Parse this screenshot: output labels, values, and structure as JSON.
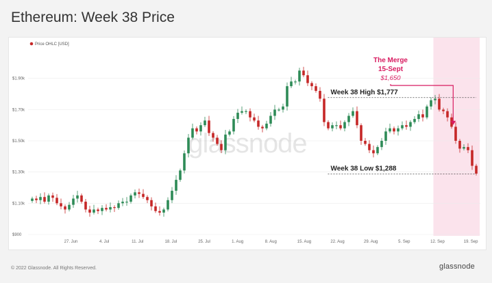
{
  "title": "Ethereum: Week 38 Price",
  "footer": "© 2022 Glassnode. All Rights Reserved.",
  "brand": "glassnode",
  "watermark": "glassnode",
  "colors": {
    "up": "#2e8b57",
    "down": "#c62828",
    "highlight_bg": "#fbe3ec",
    "accent": "#d81b60",
    "grid": "#ececec"
  },
  "chart_data": {
    "type": "candlestick",
    "legend": "Price OHLC [USD]",
    "ylim": [
      900,
      2100
    ],
    "y_ticks": [
      900,
      1100,
      1300,
      1500,
      1700,
      1900
    ],
    "y_tick_labels": [
      "$900",
      "$1.10k",
      "$1.30k",
      "$1.50k",
      "$1.70k",
      "$1.90k"
    ],
    "x_start": "2022-06-18",
    "x_end": "2022-09-21",
    "x_ticks": [
      "2022-06-27",
      "2022-07-04",
      "2022-07-11",
      "2022-07-18",
      "2022-07-25",
      "2022-08-01",
      "2022-08-08",
      "2022-08-15",
      "2022-08-22",
      "2022-08-29",
      "2022-09-05",
      "2022-09-12",
      "2022-09-19"
    ],
    "x_tick_labels": [
      "27. Jun",
      "4. Jul",
      "11. Jul",
      "18. Jul",
      "25. Jul",
      "1. Aug",
      "8. Aug",
      "15. Aug",
      "22. Aug",
      "29. Aug",
      "5. Sep",
      "12. Sep",
      "19. Sep"
    ],
    "highlight": {
      "from": "2022-09-12",
      "to": "2022-09-20"
    },
    "annotations": {
      "high": {
        "label": "Week 38 High $1,777",
        "value": 1777,
        "from": "2022-09-12"
      },
      "low": {
        "label": "Week 38 Low $1,288",
        "value": 1288,
        "from": "2022-09-12"
      },
      "merge": {
        "line1": "The Merge",
        "line2": "15-Sept",
        "price": "$1,650",
        "date": "2022-09-15",
        "value": 1650
      }
    },
    "series": [
      {
        "name": "Price OHLC [USD]",
        "x": [],
        "closes": [
          1130,
          1120,
          1140,
          1110,
          1150,
          1135,
          1100,
          1080,
          1060,
          1090,
          1130,
          1150,
          1110,
          1060,
          1040,
          1060,
          1050,
          1070,
          1060,
          1075,
          1070,
          1100,
          1110,
          1110,
          1150,
          1170,
          1160,
          1140,
          1120,
          1080,
          1050,
          1040,
          1060,
          1120,
          1180,
          1250,
          1310,
          1420,
          1520,
          1580,
          1560,
          1600,
          1630,
          1550,
          1520,
          1480,
          1440,
          1540,
          1560,
          1640,
          1680,
          1690,
          1690,
          1650,
          1630,
          1590,
          1580,
          1610,
          1660,
          1700,
          1700,
          1720,
          1850,
          1880,
          1880,
          1950,
          1920,
          1870,
          1850,
          1820,
          1770,
          1620,
          1580,
          1600,
          1600,
          1580,
          1620,
          1660,
          1690,
          1600,
          1500,
          1480,
          1440,
          1420,
          1460,
          1500,
          1560,
          1580,
          1560,
          1580,
          1600,
          1590,
          1620,
          1640,
          1670,
          1650,
          1720,
          1760,
          1770,
          1700,
          1690,
          1650,
          1590,
          1500,
          1450,
          1460,
          1440,
          1340,
          1290
        ]
      }
    ]
  }
}
